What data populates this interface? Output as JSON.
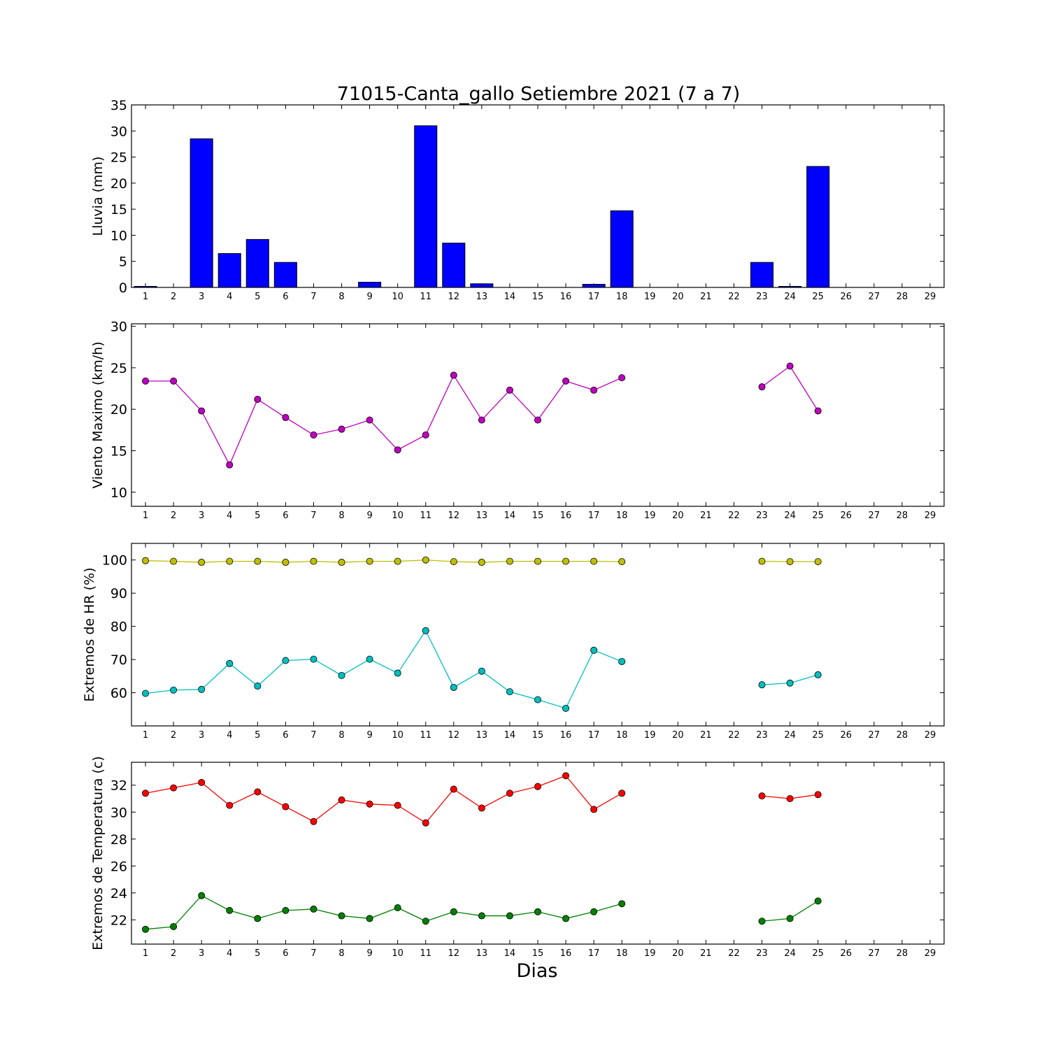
{
  "title": "71015-Canta_gallo Setiembre 2021  (7 a 7)",
  "xlabel": "Dias",
  "days": [
    1,
    2,
    3,
    4,
    5,
    6,
    7,
    8,
    9,
    10,
    11,
    12,
    13,
    14,
    15,
    16,
    17,
    18,
    19,
    20,
    21,
    22,
    23,
    24,
    25,
    26,
    27,
    28,
    29
  ],
  "chart_data": [
    {
      "type": "bar",
      "ylabel": "Lluvia (mm)",
      "ylim": [
        0,
        35
      ],
      "yticks": [
        0,
        5,
        10,
        15,
        20,
        25,
        30,
        35
      ],
      "categories": [
        1,
        2,
        3,
        4,
        5,
        6,
        7,
        8,
        9,
        10,
        11,
        12,
        13,
        14,
        15,
        16,
        17,
        18,
        19,
        20,
        21,
        22,
        23,
        24,
        25,
        26,
        27,
        28,
        29
      ],
      "series": [
        {
          "color": "#0000ff",
          "values": [
            0.2,
            0,
            28.5,
            6.5,
            9.2,
            4.8,
            0,
            0,
            1.0,
            0,
            31.0,
            8.5,
            0.7,
            0,
            0,
            0,
            0.6,
            14.7,
            0,
            0,
            0,
            0,
            4.8,
            0.2,
            23.2,
            0,
            0,
            0,
            0
          ]
        }
      ]
    },
    {
      "type": "line",
      "ylabel": "Viento Maximo (km/h)",
      "ylim": [
        8.3,
        30.3
      ],
      "yticks": [
        10,
        15,
        20,
        25,
        30
      ],
      "x": [
        1,
        2,
        3,
        4,
        5,
        6,
        7,
        8,
        9,
        10,
        11,
        12,
        13,
        14,
        15,
        16,
        17,
        18,
        19,
        20,
        21,
        22,
        23,
        24,
        25,
        26,
        27,
        28,
        29
      ],
      "series": [
        {
          "color": "#bf00bf",
          "values": [
            23.4,
            23.4,
            19.8,
            13.3,
            21.2,
            19.0,
            16.9,
            17.6,
            18.7,
            15.1,
            16.9,
            24.1,
            18.7,
            22.3,
            18.7,
            23.4,
            22.3,
            23.8,
            null,
            null,
            null,
            null,
            22.7,
            25.2,
            19.8,
            null,
            null,
            null,
            null
          ]
        }
      ]
    },
    {
      "type": "line",
      "ylabel": "Extremos de HR (%)",
      "ylim": [
        50,
        105
      ],
      "yticks": [
        60,
        70,
        80,
        90,
        100
      ],
      "x": [
        1,
        2,
        3,
        4,
        5,
        6,
        7,
        8,
        9,
        10,
        11,
        12,
        13,
        14,
        15,
        16,
        17,
        18,
        19,
        20,
        21,
        22,
        23,
        24,
        25,
        26,
        27,
        28,
        29
      ],
      "series": [
        {
          "color": "#bfbf00",
          "values": [
            99.8,
            99.6,
            99.3,
            99.6,
            99.6,
            99.3,
            99.6,
            99.3,
            99.6,
            99.6,
            100.0,
            99.5,
            99.3,
            99.6,
            99.6,
            99.6,
            99.6,
            99.5,
            null,
            null,
            null,
            null,
            99.6,
            99.5,
            99.5,
            null,
            null,
            null,
            null
          ]
        },
        {
          "color": "#00bfbf",
          "values": [
            59.8,
            60.8,
            61.0,
            68.8,
            62.0,
            69.7,
            70.1,
            65.2,
            70.1,
            65.9,
            78.7,
            61.6,
            66.5,
            60.3,
            57.9,
            55.3,
            72.8,
            69.4,
            null,
            null,
            null,
            null,
            62.4,
            62.9,
            65.4,
            null,
            null,
            null,
            null
          ]
        }
      ]
    },
    {
      "type": "line",
      "ylabel": "Extremos de Temperatura (c)",
      "ylim": [
        20.2,
        33.7
      ],
      "yticks": [
        22,
        24,
        26,
        28,
        30,
        32
      ],
      "x": [
        1,
        2,
        3,
        4,
        5,
        6,
        7,
        8,
        9,
        10,
        11,
        12,
        13,
        14,
        15,
        16,
        17,
        18,
        19,
        20,
        21,
        22,
        23,
        24,
        25,
        26,
        27,
        28,
        29
      ],
      "series": [
        {
          "color": "#ff0000",
          "values": [
            31.4,
            31.8,
            32.2,
            30.5,
            31.5,
            30.4,
            29.3,
            30.9,
            30.6,
            30.5,
            29.2,
            31.7,
            30.3,
            31.4,
            31.9,
            32.7,
            30.2,
            31.4,
            null,
            null,
            null,
            null,
            31.2,
            31.0,
            31.3,
            null,
            null,
            null,
            null
          ]
        },
        {
          "color": "#008000",
          "values": [
            21.3,
            21.5,
            23.8,
            22.7,
            22.1,
            22.7,
            22.8,
            22.3,
            22.1,
            22.9,
            21.9,
            22.6,
            22.3,
            22.3,
            22.6,
            22.1,
            22.6,
            23.2,
            null,
            null,
            null,
            null,
            21.9,
            22.1,
            23.4,
            null,
            null,
            null,
            null
          ]
        }
      ]
    }
  ]
}
